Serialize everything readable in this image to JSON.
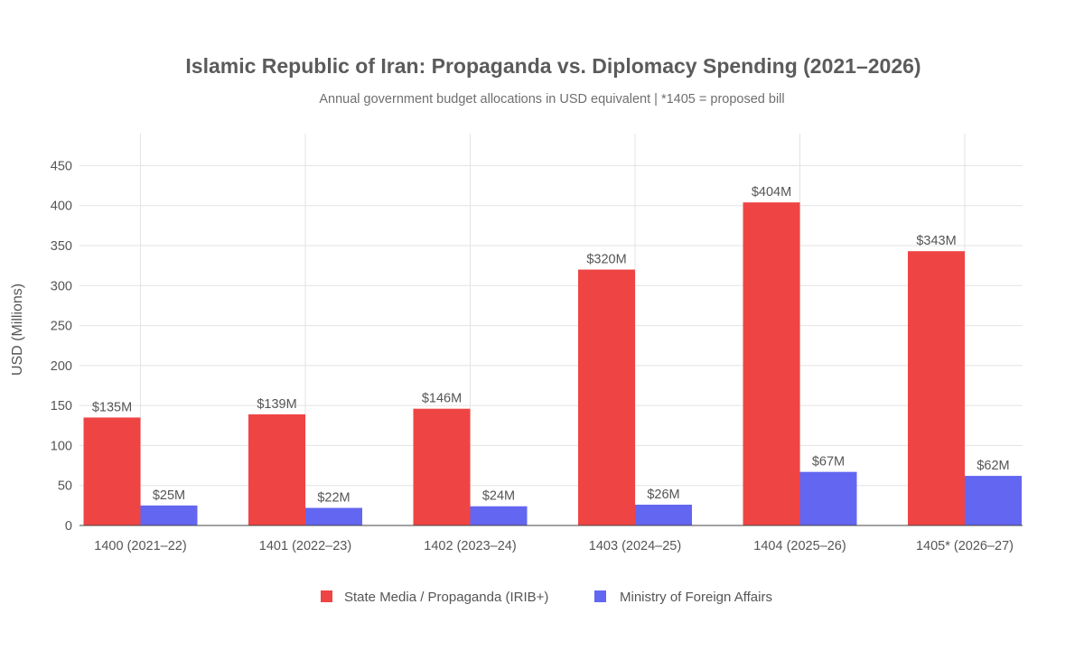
{
  "chart_data": {
    "type": "bar",
    "title": "Islamic Republic of Iran: Propaganda vs. Diplomacy Spending (2021–2026)",
    "subtitle": "Annual government budget allocations in USD equivalent  |  *1405 = proposed bill",
    "xlabel": "",
    "ylabel": "USD (Millions)",
    "ylim": [
      0,
      490
    ],
    "yticks": [
      0,
      50,
      100,
      150,
      200,
      250,
      300,
      350,
      400,
      450
    ],
    "grid": true,
    "legend_position": "bottom-center",
    "categories": [
      "1400 (2021–22)",
      "1401 (2022–23)",
      "1402 (2023–24)",
      "1403 (2024–25)",
      "1404 (2025–26)",
      "1405* (2026–27)"
    ],
    "series": [
      {
        "name": "State Media / Propaganda (IRIB+)",
        "color": "#ef4444",
        "values": [
          135,
          139,
          146,
          320,
          404,
          343
        ],
        "labels": [
          "$135M",
          "$139M",
          "$146M",
          "$320M",
          "$404M",
          "$343M"
        ]
      },
      {
        "name": "Ministry of Foreign Affairs",
        "color": "#6366f1",
        "values": [
          25,
          22,
          24,
          26,
          67,
          62
        ],
        "labels": [
          "$25M",
          "$22M",
          "$24M",
          "$26M",
          "$67M",
          "$62M"
        ]
      }
    ]
  }
}
